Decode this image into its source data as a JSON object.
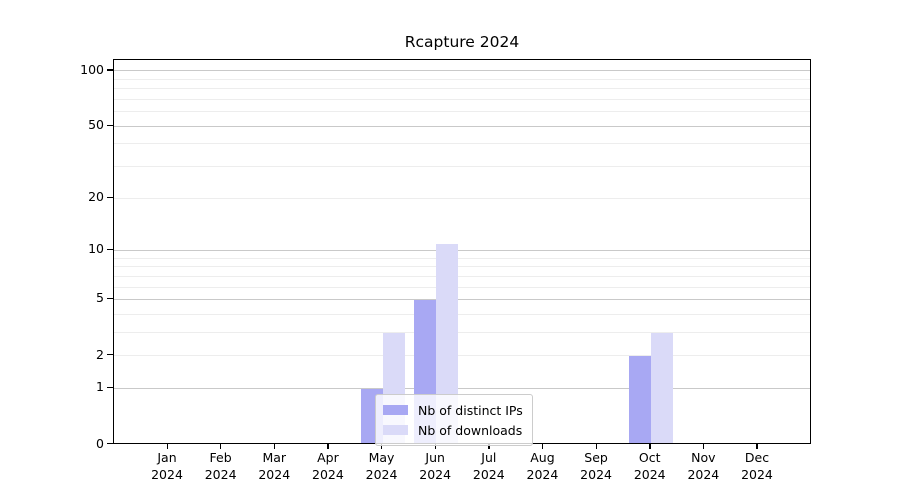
{
  "page": {
    "background": "#ffffff"
  },
  "chart_data": {
    "type": "bar",
    "title": "Rcapture 2024",
    "categories": [
      "Jan 2024",
      "Feb 2024",
      "Mar 2024",
      "Apr 2024",
      "May 2024",
      "Jun 2024",
      "Jul 2024",
      "Aug 2024",
      "Sep 2024",
      "Oct 2024",
      "Nov 2024",
      "Dec 2024"
    ],
    "x_tick_months": [
      "Jan",
      "Feb",
      "Mar",
      "Apr",
      "May",
      "Jun",
      "Jul",
      "Aug",
      "Sep",
      "Oct",
      "Nov",
      "Dec"
    ],
    "x_tick_year": "2024",
    "series": [
      {
        "name": "Nb of distinct IPs",
        "color": "#a8a8f3",
        "values": [
          0,
          0,
          0,
          0,
          1,
          5,
          0,
          0,
          0,
          2,
          0,
          0
        ]
      },
      {
        "name": "Nb of downloads",
        "color": "#dadaf8",
        "values": [
          0,
          0,
          0,
          0,
          3,
          11,
          0,
          0,
          0,
          3,
          0,
          0
        ]
      }
    ],
    "xlabel": "",
    "ylabel": "",
    "yscale": "log1p",
    "ylim": [
      0,
      110
    ],
    "y_tick_values": [
      0,
      1,
      2,
      5,
      10,
      20,
      50,
      100
    ],
    "y_tick_labels": [
      "0",
      "1",
      "2",
      "5",
      "10",
      "20",
      "50",
      "100"
    ],
    "grid": {
      "minor_values": [
        2,
        3,
        4,
        6,
        7,
        8,
        9,
        20,
        30,
        40,
        60,
        70,
        80,
        90
      ],
      "major_values": [
        1,
        5,
        10,
        50,
        100
      ],
      "minor_color": "#ededed",
      "major_color": "#c9c9c9"
    },
    "legend_position": "lower center",
    "frame_color": "#000000"
  }
}
